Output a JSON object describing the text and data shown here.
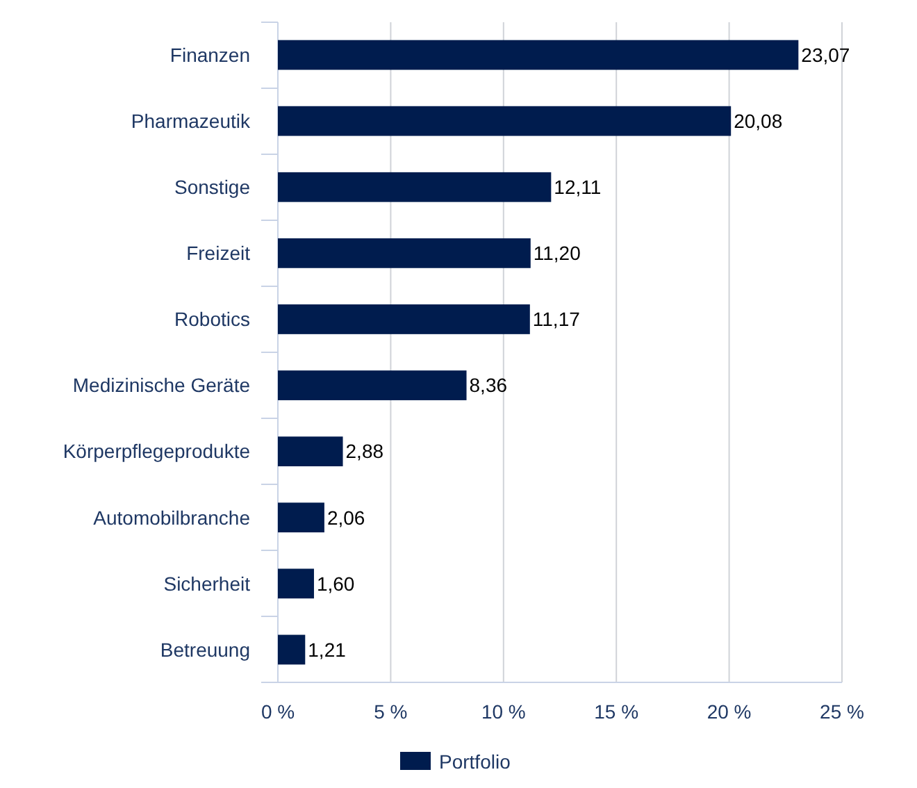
{
  "chart_data": {
    "type": "bar",
    "orientation": "horizontal",
    "categories": [
      "Finanzen",
      "Pharmazeutik",
      "Sonstige",
      "Freizeit",
      "Robotics",
      "Medizinische Geräte",
      "Körperpflegeprodukte",
      "Automobilbranche",
      "Sicherheit",
      "Betreuung"
    ],
    "series": [
      {
        "name": "Portfolio",
        "color": "#001c4e",
        "values": [
          23.07,
          20.08,
          12.11,
          11.2,
          11.17,
          8.36,
          2.88,
          2.06,
          1.6,
          1.21
        ]
      }
    ],
    "value_labels": [
      "23,07",
      "20,08",
      "12,11",
      "11,20",
      "11,17",
      "8,36",
      "2,88",
      "2,06",
      "1,60",
      "1,21"
    ],
    "xlim": [
      0,
      25
    ],
    "xticks": [
      {
        "value": 0,
        "label": "0 %"
      },
      {
        "value": 5,
        "label": "5 %"
      },
      {
        "value": 10,
        "label": "10 %"
      },
      {
        "value": 15,
        "label": "15 %"
      },
      {
        "value": 20,
        "label": "20 %"
      },
      {
        "value": 25,
        "label": "25 %"
      }
    ],
    "grid": "x",
    "legend": "bottom"
  }
}
